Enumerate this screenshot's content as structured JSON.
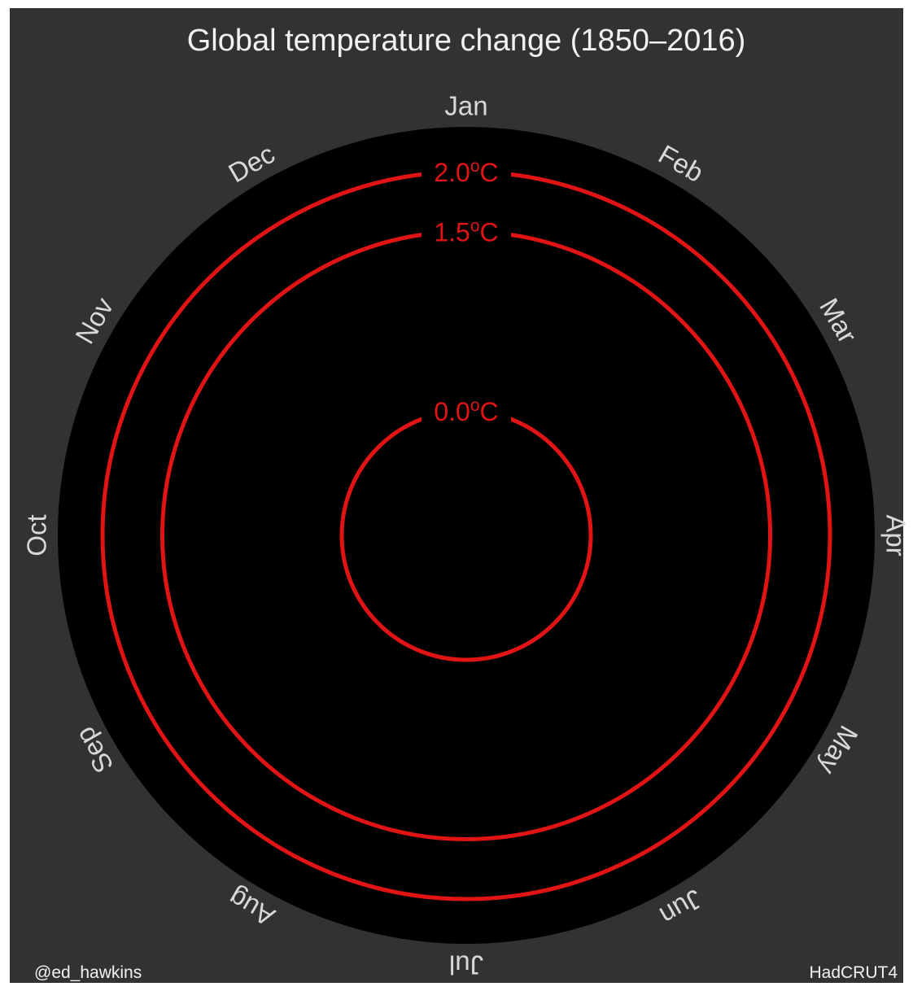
{
  "title": "Global temperature change (1850–2016)",
  "credit_left": "@ed_hawkins",
  "credit_right": "HadCRUT4",
  "colors": {
    "frame_background": "#323232",
    "plot_background": "#000000",
    "ring": "#e01414",
    "text": "#f2f2f2"
  },
  "chart_data": {
    "type": "polar-line",
    "title": "Global temperature change (1850–2016)",
    "angular_axis": {
      "categories": [
        "Jan",
        "Feb",
        "Mar",
        "Apr",
        "May",
        "Jun",
        "Jul",
        "Aug",
        "Sep",
        "Oct",
        "Nov",
        "Dec"
      ],
      "start": "top",
      "direction": "clockwise"
    },
    "radial_axis": {
      "unit": "°C",
      "range": [
        -1.0,
        2.3
      ],
      "reference_rings": [
        {
          "value": 0.0,
          "label": "0.0",
          "unit": "o",
          "suffix": "C"
        },
        {
          "value": 1.5,
          "label": "1.5",
          "unit": "o",
          "suffix": "C"
        },
        {
          "value": 2.0,
          "label": "2.0",
          "unit": "o",
          "suffix": "C"
        }
      ]
    },
    "series": [],
    "grid": false,
    "legend": "none"
  }
}
